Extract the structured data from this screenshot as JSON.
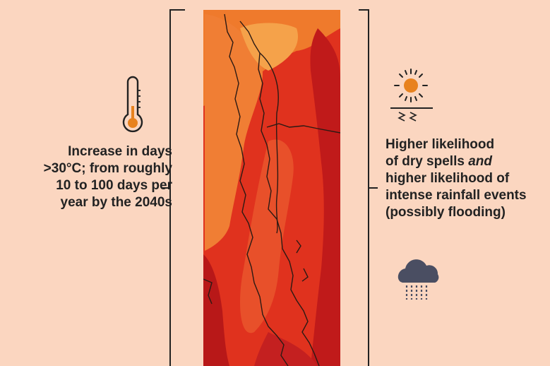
{
  "left_text": {
    "line1": "Increase in days",
    "line2": ">30°C; from roughly",
    "line3": "10 to 100 days per",
    "line4": "year by the 2040s"
  },
  "right_text": {
    "line1": "Higher likelihood",
    "line2_a": "of dry spells ",
    "line2_b": "and",
    "line3": "higher likelihood of",
    "line4": "intense rainfall events",
    "line5": "(possibly flooding)"
  },
  "icons": {
    "left": "thermometer-icon",
    "right_top": "sun-drought-icon",
    "right_bottom": "rain-cloud-icon"
  },
  "colors": {
    "background": "#fbd6c0",
    "map_dark": "#c01a1a",
    "map_mid": "#e0321e",
    "map_light": "#ef7a2c",
    "icon_orange": "#e8821e",
    "cloud": "#4a4e62"
  }
}
